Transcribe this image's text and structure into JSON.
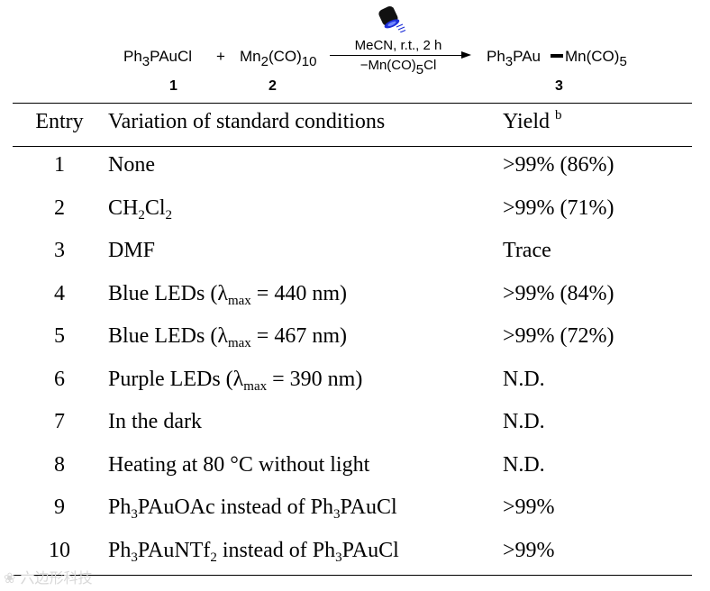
{
  "scheme": {
    "reactant1": {
      "main": "Ph",
      "sub1": "3",
      "rest": "PAuCl",
      "number": "1"
    },
    "plus": "+",
    "reactant2": {
      "a": "Mn",
      "sub1": "2",
      "b": "(CO)",
      "sub2": "10",
      "number": "2"
    },
    "conditions_top": "MeCN, r.t., 2 h",
    "conditions_bottom": {
      "a": "−Mn(CO)",
      "sub": "5",
      "b": "Cl"
    },
    "product": {
      "a": "Ph",
      "sub1": "3",
      "b": "PAu",
      "c": "Mn(CO)",
      "sub2": "5",
      "number": "3"
    },
    "icon": "blue-light-lamp-icon",
    "lamp_color": "#1e2fd8"
  },
  "table": {
    "headers": {
      "entry": "Entry",
      "variation": "Variation of standard conditions",
      "yield": "Yield",
      "yield_note": "b"
    },
    "rows": [
      {
        "entry": "1",
        "yield": ">99% (86%)"
      },
      {
        "entry": "2",
        "yield": ">99% (71%)"
      },
      {
        "entry": "3",
        "yield": "Trace"
      },
      {
        "entry": "4",
        "yield": ">99% (84%)"
      },
      {
        "entry": "5",
        "yield": ">99% (72%)"
      },
      {
        "entry": "6",
        "yield": "N.D."
      },
      {
        "entry": "7",
        "yield": "N.D."
      },
      {
        "entry": "8",
        "yield": "N.D."
      },
      {
        "entry": "9",
        "yield": ">99%"
      },
      {
        "entry": "10",
        "yield": ">99%"
      }
    ],
    "variations": {
      "r1": "None",
      "r2": {
        "a": "CH",
        "s1": "2",
        "b": "Cl",
        "s2": "2"
      },
      "r3": "DMF",
      "r4": {
        "a": "Blue LEDs (λ",
        "s": "max",
        "b": " = 440 nm)"
      },
      "r5": {
        "a": "Blue LEDs (λ",
        "s": "max",
        "b": " = 467 nm)"
      },
      "r6": {
        "a": "Purple LEDs (λ",
        "s": "max",
        "b": " = 390 nm)"
      },
      "r7": "In the dark",
      "r8": "Heating at 80 °C without light",
      "r9": {
        "a": "Ph",
        "s1": "3",
        "b": "PAuOAc instead of Ph",
        "s2": "3",
        "c": "PAuCl"
      },
      "r10": {
        "a": "Ph",
        "s1": "3",
        "b": "PAuNTf",
        "s2": "2",
        "c": " instead of Ph",
        "s3": "3",
        "d": "PAuCl"
      }
    }
  },
  "watermark": "六边形科技"
}
